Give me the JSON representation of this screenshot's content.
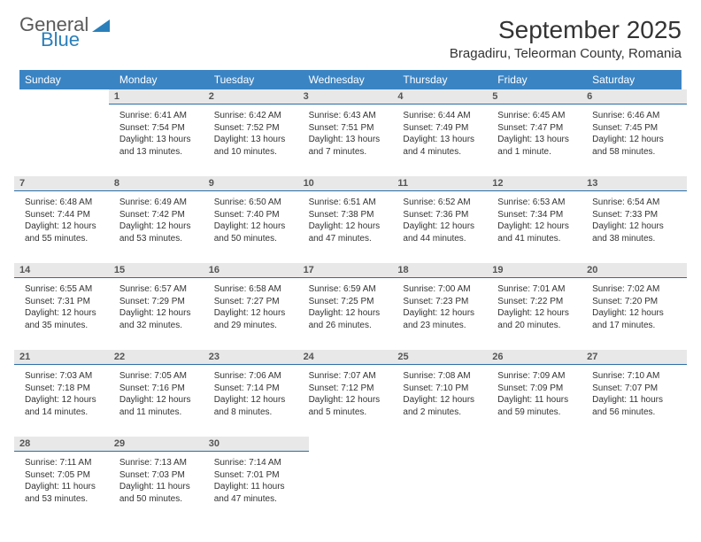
{
  "logo": {
    "line1": "General",
    "line2": "Blue"
  },
  "title": "September 2025",
  "location": "Bragadiru, Teleorman County, Romania",
  "colors": {
    "header_bg": "#3b84c4",
    "header_text": "#ffffff",
    "daynum_bg": "#e8e8e8",
    "daynum_border": "#2a6ea8",
    "body_text": "#333333",
    "logo_gray": "#5a5a5a",
    "logo_blue": "#2a7fba"
  },
  "weekdays": [
    "Sunday",
    "Monday",
    "Tuesday",
    "Wednesday",
    "Thursday",
    "Friday",
    "Saturday"
  ],
  "weeks": [
    [
      {
        "day": "",
        "sunrise": "",
        "sunset": "",
        "daylight": ""
      },
      {
        "day": "1",
        "sunrise": "Sunrise: 6:41 AM",
        "sunset": "Sunset: 7:54 PM",
        "daylight": "Daylight: 13 hours and 13 minutes."
      },
      {
        "day": "2",
        "sunrise": "Sunrise: 6:42 AM",
        "sunset": "Sunset: 7:52 PM",
        "daylight": "Daylight: 13 hours and 10 minutes."
      },
      {
        "day": "3",
        "sunrise": "Sunrise: 6:43 AM",
        "sunset": "Sunset: 7:51 PM",
        "daylight": "Daylight: 13 hours and 7 minutes."
      },
      {
        "day": "4",
        "sunrise": "Sunrise: 6:44 AM",
        "sunset": "Sunset: 7:49 PM",
        "daylight": "Daylight: 13 hours and 4 minutes."
      },
      {
        "day": "5",
        "sunrise": "Sunrise: 6:45 AM",
        "sunset": "Sunset: 7:47 PM",
        "daylight": "Daylight: 13 hours and 1 minute."
      },
      {
        "day": "6",
        "sunrise": "Sunrise: 6:46 AM",
        "sunset": "Sunset: 7:45 PM",
        "daylight": "Daylight: 12 hours and 58 minutes."
      }
    ],
    [
      {
        "day": "7",
        "sunrise": "Sunrise: 6:48 AM",
        "sunset": "Sunset: 7:44 PM",
        "daylight": "Daylight: 12 hours and 55 minutes."
      },
      {
        "day": "8",
        "sunrise": "Sunrise: 6:49 AM",
        "sunset": "Sunset: 7:42 PM",
        "daylight": "Daylight: 12 hours and 53 minutes."
      },
      {
        "day": "9",
        "sunrise": "Sunrise: 6:50 AM",
        "sunset": "Sunset: 7:40 PM",
        "daylight": "Daylight: 12 hours and 50 minutes."
      },
      {
        "day": "10",
        "sunrise": "Sunrise: 6:51 AM",
        "sunset": "Sunset: 7:38 PM",
        "daylight": "Daylight: 12 hours and 47 minutes."
      },
      {
        "day": "11",
        "sunrise": "Sunrise: 6:52 AM",
        "sunset": "Sunset: 7:36 PM",
        "daylight": "Daylight: 12 hours and 44 minutes."
      },
      {
        "day": "12",
        "sunrise": "Sunrise: 6:53 AM",
        "sunset": "Sunset: 7:34 PM",
        "daylight": "Daylight: 12 hours and 41 minutes."
      },
      {
        "day": "13",
        "sunrise": "Sunrise: 6:54 AM",
        "sunset": "Sunset: 7:33 PM",
        "daylight": "Daylight: 12 hours and 38 minutes."
      }
    ],
    [
      {
        "day": "14",
        "sunrise": "Sunrise: 6:55 AM",
        "sunset": "Sunset: 7:31 PM",
        "daylight": "Daylight: 12 hours and 35 minutes."
      },
      {
        "day": "15",
        "sunrise": "Sunrise: 6:57 AM",
        "sunset": "Sunset: 7:29 PM",
        "daylight": "Daylight: 12 hours and 32 minutes."
      },
      {
        "day": "16",
        "sunrise": "Sunrise: 6:58 AM",
        "sunset": "Sunset: 7:27 PM",
        "daylight": "Daylight: 12 hours and 29 minutes."
      },
      {
        "day": "17",
        "sunrise": "Sunrise: 6:59 AM",
        "sunset": "Sunset: 7:25 PM",
        "daylight": "Daylight: 12 hours and 26 minutes."
      },
      {
        "day": "18",
        "sunrise": "Sunrise: 7:00 AM",
        "sunset": "Sunset: 7:23 PM",
        "daylight": "Daylight: 12 hours and 23 minutes."
      },
      {
        "day": "19",
        "sunrise": "Sunrise: 7:01 AM",
        "sunset": "Sunset: 7:22 PM",
        "daylight": "Daylight: 12 hours and 20 minutes."
      },
      {
        "day": "20",
        "sunrise": "Sunrise: 7:02 AM",
        "sunset": "Sunset: 7:20 PM",
        "daylight": "Daylight: 12 hours and 17 minutes."
      }
    ],
    [
      {
        "day": "21",
        "sunrise": "Sunrise: 7:03 AM",
        "sunset": "Sunset: 7:18 PM",
        "daylight": "Daylight: 12 hours and 14 minutes."
      },
      {
        "day": "22",
        "sunrise": "Sunrise: 7:05 AM",
        "sunset": "Sunset: 7:16 PM",
        "daylight": "Daylight: 12 hours and 11 minutes."
      },
      {
        "day": "23",
        "sunrise": "Sunrise: 7:06 AM",
        "sunset": "Sunset: 7:14 PM",
        "daylight": "Daylight: 12 hours and 8 minutes."
      },
      {
        "day": "24",
        "sunrise": "Sunrise: 7:07 AM",
        "sunset": "Sunset: 7:12 PM",
        "daylight": "Daylight: 12 hours and 5 minutes."
      },
      {
        "day": "25",
        "sunrise": "Sunrise: 7:08 AM",
        "sunset": "Sunset: 7:10 PM",
        "daylight": "Daylight: 12 hours and 2 minutes."
      },
      {
        "day": "26",
        "sunrise": "Sunrise: 7:09 AM",
        "sunset": "Sunset: 7:09 PM",
        "daylight": "Daylight: 11 hours and 59 minutes."
      },
      {
        "day": "27",
        "sunrise": "Sunrise: 7:10 AM",
        "sunset": "Sunset: 7:07 PM",
        "daylight": "Daylight: 11 hours and 56 minutes."
      }
    ],
    [
      {
        "day": "28",
        "sunrise": "Sunrise: 7:11 AM",
        "sunset": "Sunset: 7:05 PM",
        "daylight": "Daylight: 11 hours and 53 minutes."
      },
      {
        "day": "29",
        "sunrise": "Sunrise: 7:13 AM",
        "sunset": "Sunset: 7:03 PM",
        "daylight": "Daylight: 11 hours and 50 minutes."
      },
      {
        "day": "30",
        "sunrise": "Sunrise: 7:14 AM",
        "sunset": "Sunset: 7:01 PM",
        "daylight": "Daylight: 11 hours and 47 minutes."
      },
      {
        "day": "",
        "sunrise": "",
        "sunset": "",
        "daylight": ""
      },
      {
        "day": "",
        "sunrise": "",
        "sunset": "",
        "daylight": ""
      },
      {
        "day": "",
        "sunrise": "",
        "sunset": "",
        "daylight": ""
      },
      {
        "day": "",
        "sunrise": "",
        "sunset": "",
        "daylight": ""
      }
    ]
  ]
}
